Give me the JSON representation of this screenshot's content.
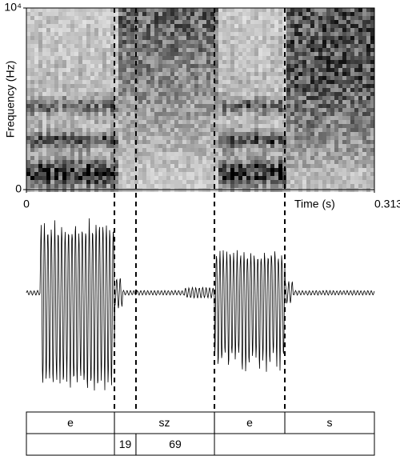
{
  "chart_data": {
    "type": "spectrogram",
    "y_label": "Frequency (Hz)",
    "x_label": "Time (s)",
    "xlim": [
      0,
      0.3135
    ],
    "xticks": [
      0,
      0.3135
    ],
    "ylim": [
      0,
      10000
    ],
    "yticks": [
      0,
      {
        "value": 10000,
        "label": "10⁴"
      }
    ],
    "tiers": [
      {
        "intervals": [
          {
            "start": 0,
            "end": 0.0793,
            "label": "e"
          },
          {
            "start": 0.0793,
            "end": 0.1694,
            "label": "sz"
          },
          {
            "start": 0.1694,
            "end": 0.2328,
            "label": "e"
          },
          {
            "start": 0.2328,
            "end": 0.3135,
            "label": "s"
          }
        ]
      },
      {
        "intervals": [
          {
            "start": 0.0793,
            "end": 0.0987,
            "label": "19"
          },
          {
            "start": 0.0987,
            "end": 0.1694,
            "label": "69"
          }
        ]
      }
    ]
  }
}
